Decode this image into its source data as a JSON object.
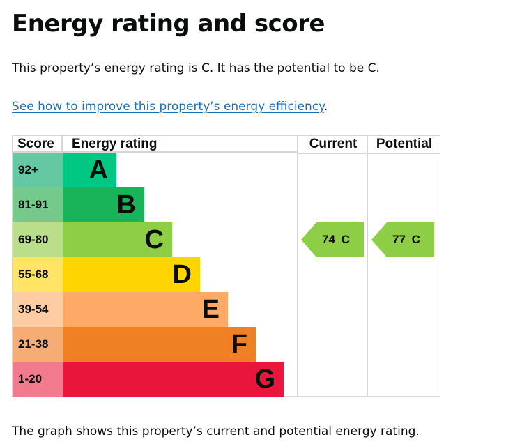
{
  "title": "Energy rating and score",
  "summary": "This property’s energy rating is C. It has the potential to be C.",
  "link": "See how to improve this property’s energy efficiency",
  "link_suffix": ".",
  "headers": {
    "score": "Score",
    "rating": "Energy rating",
    "current": "Current",
    "potential": "Potential"
  },
  "bands": [
    {
      "score": "92+",
      "letter": "A",
      "color": "#00c781",
      "light": "#64c8a2"
    },
    {
      "score": "81-91",
      "letter": "B",
      "color": "#19b459",
      "light": "#75ca8b"
    },
    {
      "score": "69-80",
      "letter": "C",
      "color": "#8dce46",
      "light": "#bade8a"
    },
    {
      "score": "55-68",
      "letter": "D",
      "color": "#ffd500",
      "light": "#ffe466"
    },
    {
      "score": "39-54",
      "letter": "E",
      "color": "#fcaa65",
      "light": "#fdcca3"
    },
    {
      "score": "21-38",
      "letter": "F",
      "color": "#ef8023",
      "light": "#f5ac75"
    },
    {
      "score": "1-20",
      "letter": "G",
      "color": "#e9153b",
      "light": "#f27a8f"
    }
  ],
  "current": {
    "score": "74",
    "letter": "C",
    "label": "74 C",
    "color": "#8dce46"
  },
  "potential": {
    "score": "77",
    "letter": "C",
    "label": "77 C",
    "color": "#8dce46"
  },
  "footer": "The graph shows this property’s current and potential energy rating."
}
